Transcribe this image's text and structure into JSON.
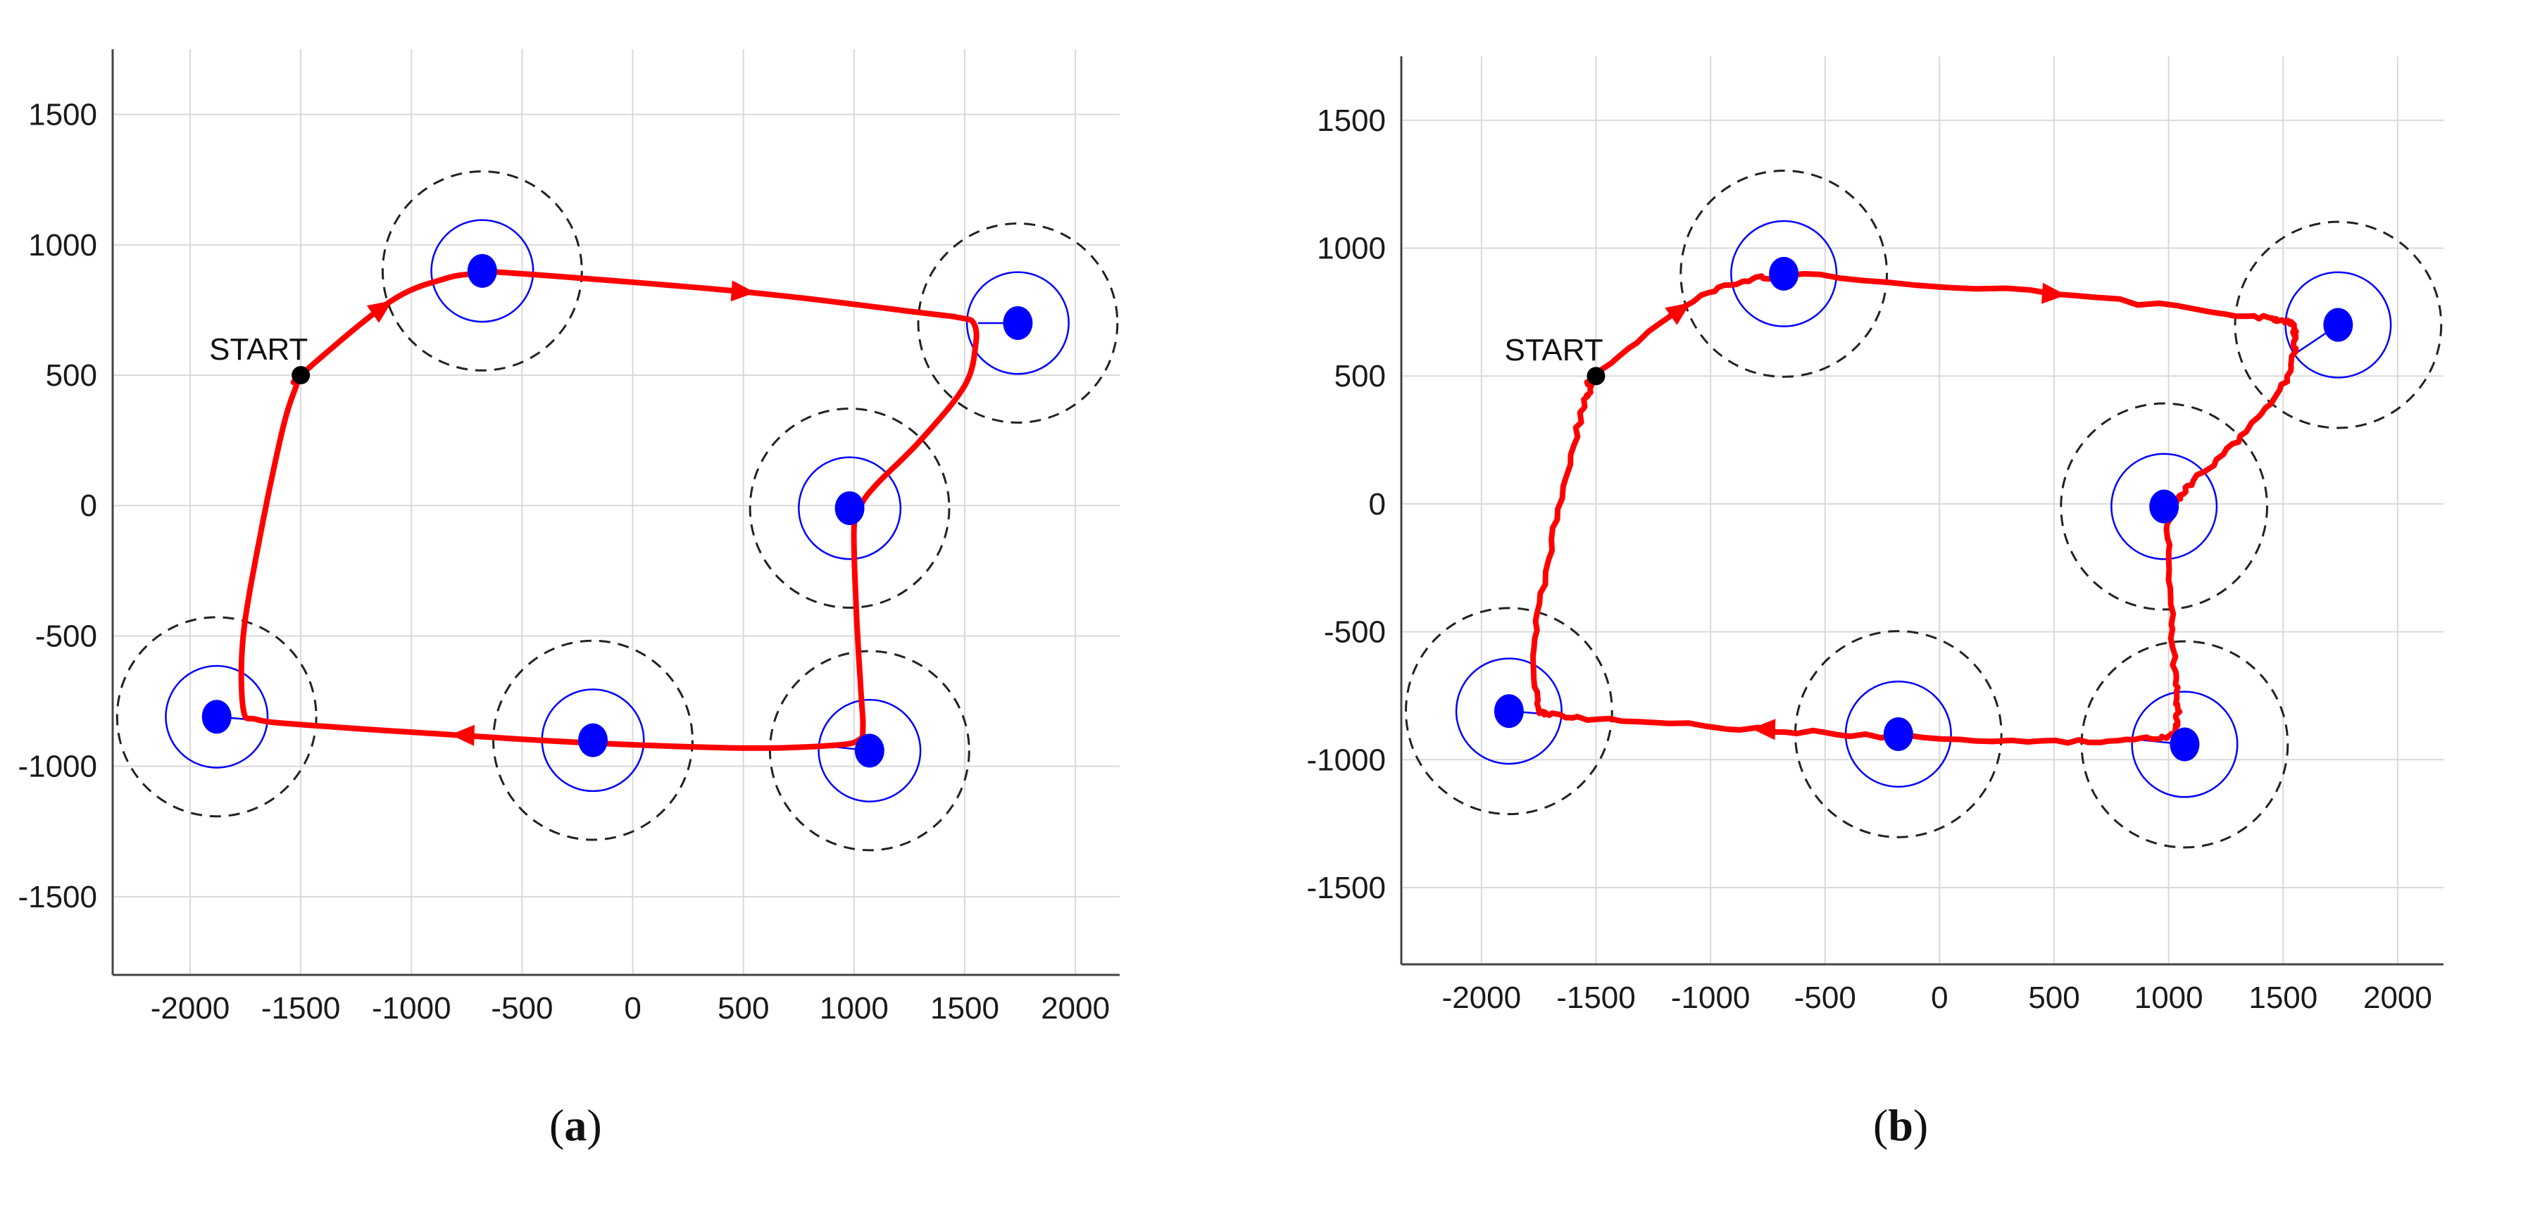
{
  "chart_data": [
    {
      "type": "scatter",
      "panel_label": "a",
      "title": "",
      "xlabel": "",
      "ylabel": "",
      "xlim": [
        -2350,
        2200
      ],
      "ylim": [
        -1800,
        1750
      ],
      "xticks": [
        -2000,
        -1500,
        -1000,
        -500,
        0,
        500,
        1000,
        1500,
        2000
      ],
      "yticks": [
        1500,
        1000,
        500,
        0,
        -500,
        -1000,
        -1500
      ],
      "xtick_labels": [
        "-2000",
        "-1500",
        "-1000",
        "-500",
        "0",
        "500",
        "1000",
        "1500",
        "2000"
      ],
      "ytick_labels": [
        "1500",
        "1000",
        "500",
        "0",
        "-500",
        "-1000",
        "-1500"
      ],
      "grid": true,
      "start": {
        "label": "START",
        "x": -1500,
        "y": 500
      },
      "targets": [
        {
          "x": -680,
          "y": 900
        },
        {
          "x": 1740,
          "y": 700
        },
        {
          "x": 980,
          "y": -10
        },
        {
          "x": 1070,
          "y": -940
        },
        {
          "x": -180,
          "y": -900
        },
        {
          "x": -1880,
          "y": -810
        }
      ],
      "inner_radius": 230,
      "outer_radius": 450,
      "trajectory": {
        "name": "",
        "noisy": false,
        "points": [
          [
            -1500,
            500
          ],
          [
            -1100,
            780
          ],
          [
            -850,
            870
          ],
          [
            -700,
            890
          ],
          [
            -600,
            895
          ],
          [
            500,
            820
          ],
          [
            1300,
            740
          ],
          [
            1480,
            720
          ],
          [
            1540,
            700
          ],
          [
            1550,
            620
          ],
          [
            1500,
            460
          ],
          [
            1300,
            250
          ],
          [
            1100,
            80
          ],
          [
            1030,
            0
          ],
          [
            1000,
            -80
          ],
          [
            1010,
            -400
          ],
          [
            1030,
            -700
          ],
          [
            1040,
            -850
          ],
          [
            1020,
            -900
          ],
          [
            900,
            -920
          ],
          [
            500,
            -930
          ],
          [
            -200,
            -910
          ],
          [
            -800,
            -880
          ],
          [
            -1500,
            -840
          ],
          [
            -1700,
            -820
          ],
          [
            -1760,
            -780
          ],
          [
            -1760,
            -500
          ],
          [
            -1680,
            -100
          ],
          [
            -1580,
            300
          ],
          [
            -1520,
            460
          ]
        ]
      },
      "arrows": [
        {
          "x": -1130,
          "y": 760,
          "dx": 1,
          "dy": 0.7
        },
        {
          "x": 500,
          "y": 820,
          "dx": 1,
          "dy": -0.07
        },
        {
          "x": -770,
          "y": -880,
          "dx": -1,
          "dy": 0.03
        }
      ],
      "connectors": [
        {
          "from": [
            -680,
            900
          ],
          "to": [
            -650,
            890
          ]
        },
        {
          "from": [
            1740,
            700
          ],
          "to": [
            1560,
            700
          ]
        },
        {
          "from": [
            1070,
            -940
          ],
          "to": [
            850,
            -920
          ]
        },
        {
          "from": [
            -1880,
            -810
          ],
          "to": [
            -1740,
            -820
          ]
        }
      ]
    },
    {
      "type": "scatter",
      "panel_label": "b",
      "title": "",
      "xlabel": "",
      "ylabel": "",
      "xlim": [
        -2350,
        2200
      ],
      "ylim": [
        -1800,
        1750
      ],
      "xticks": [
        -2000,
        -1500,
        -1000,
        -500,
        0,
        500,
        1000,
        1500,
        2000
      ],
      "yticks": [
        1500,
        1000,
        500,
        0,
        -500,
        -1000,
        -1500
      ],
      "xtick_labels": [
        "-2000",
        "-1500",
        "-1000",
        "-500",
        "0",
        "500",
        "1000",
        "1500",
        "2000"
      ],
      "ytick_labels": [
        "1500",
        "1000",
        "500",
        "0",
        "-500",
        "-1000",
        "-1500"
      ],
      "grid": true,
      "start": {
        "label": "START",
        "x": -1500,
        "y": 500
      },
      "targets": [
        {
          "x": -680,
          "y": 900
        },
        {
          "x": 1740,
          "y": 700
        },
        {
          "x": 980,
          "y": -10
        },
        {
          "x": 1070,
          "y": -940
        },
        {
          "x": -180,
          "y": -900
        },
        {
          "x": -1880,
          "y": -810
        }
      ],
      "inner_radius": 230,
      "outer_radius": 450,
      "trajectory": {
        "name": "",
        "noisy": true,
        "points": [
          [
            -1500,
            500
          ],
          [
            -1100,
            780
          ],
          [
            -850,
            870
          ],
          [
            -700,
            890
          ],
          [
            -600,
            895
          ],
          [
            500,
            820
          ],
          [
            1300,
            740
          ],
          [
            1480,
            720
          ],
          [
            1540,
            700
          ],
          [
            1550,
            620
          ],
          [
            1500,
            460
          ],
          [
            1300,
            250
          ],
          [
            1100,
            80
          ],
          [
            1030,
            0
          ],
          [
            1000,
            -80
          ],
          [
            1010,
            -400
          ],
          [
            1030,
            -700
          ],
          [
            1040,
            -850
          ],
          [
            1020,
            -900
          ],
          [
            900,
            -920
          ],
          [
            500,
            -930
          ],
          [
            -200,
            -910
          ],
          [
            -800,
            -880
          ],
          [
            -1500,
            -840
          ],
          [
            -1700,
            -820
          ],
          [
            -1760,
            -780
          ],
          [
            -1760,
            -500
          ],
          [
            -1680,
            -100
          ],
          [
            -1580,
            300
          ],
          [
            -1520,
            460
          ]
        ]
      },
      "arrows": [
        {
          "x": -1130,
          "y": 760,
          "dx": 1,
          "dy": 0.7
        },
        {
          "x": 500,
          "y": 820,
          "dx": 1,
          "dy": -0.07
        },
        {
          "x": -770,
          "y": -880,
          "dx": -1,
          "dy": 0.03
        }
      ],
      "connectors": [
        {
          "from": [
            -680,
            900
          ],
          "to": [
            -650,
            890
          ]
        },
        {
          "from": [
            1740,
            700
          ],
          "to": [
            1540,
            580
          ]
        },
        {
          "from": [
            1070,
            -940
          ],
          "to": [
            850,
            -920
          ]
        },
        {
          "from": [
            -1880,
            -810
          ],
          "to": [
            -1740,
            -820
          ]
        }
      ]
    }
  ],
  "colors": {
    "trajectory": "#ff0000",
    "target": "#0000ff",
    "inner_circle": "#0000ff",
    "outer_circle": "#222222",
    "start_marker": "#000000",
    "grid": "#d9d9d9",
    "axis": "#444444"
  }
}
